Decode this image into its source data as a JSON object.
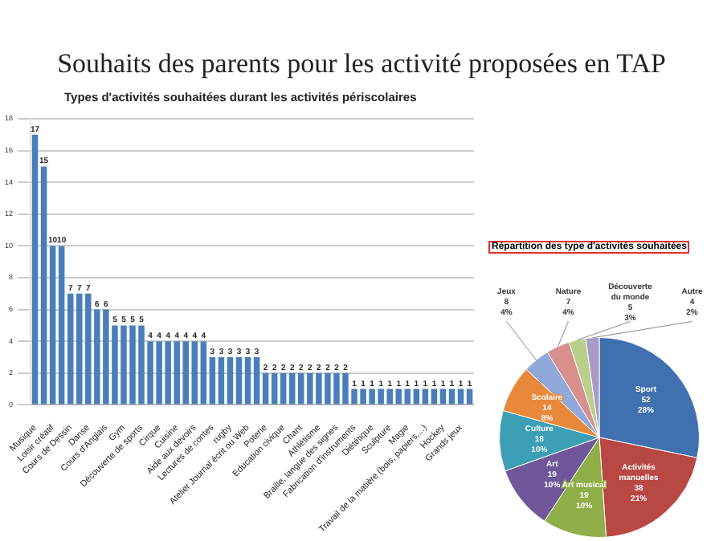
{
  "chart_data": [
    {
      "type": "bar",
      "title": "Souhaits des parents pour les activité proposées en TAP",
      "subtitle": "Types d'activités souhaitées durant les activités périscolaires",
      "categories": [
        "Musique",
        null,
        "Loisir créatif",
        null,
        "Cours de Dessin",
        null,
        "Danse",
        null,
        "Cours d'Anglais",
        null,
        "Gym",
        null,
        "Découverte de sports",
        null,
        "Cirque",
        null,
        "Cuisine",
        null,
        "Aide aux devoirs",
        null,
        "Lectures de contes",
        null,
        "rugby",
        null,
        "Atelier Journal écrit ou Web",
        null,
        "Poterie",
        null,
        "Education civique",
        null,
        "Chant",
        null,
        "Athlétisme",
        null,
        "Braille, langue des signes",
        null,
        "Fabrication d'instruments",
        null,
        "Diététique",
        null,
        "Sculpture",
        null,
        "Magie",
        null,
        "Travail de la matière (bois, papiers,...)",
        null,
        "Hockey",
        null,
        "Grands jeux",
        null
      ],
      "values": [
        17,
        15,
        10,
        10,
        7,
        7,
        7,
        6,
        6,
        5,
        5,
        5,
        5,
        4,
        4,
        4,
        4,
        4,
        4,
        4,
        3,
        3,
        3,
        3,
        3,
        3,
        2,
        2,
        2,
        2,
        2,
        2,
        2,
        2,
        2,
        2,
        1,
        1,
        1,
        1,
        1,
        1,
        1,
        1,
        1,
        1,
        1,
        1,
        1,
        1
      ],
      "color": "#4a7ebb",
      "ylim": [
        0,
        18
      ],
      "yticks": [
        0,
        2,
        4,
        6,
        8,
        10,
        12,
        14,
        16,
        18
      ],
      "grid": "y",
      "data_labels": true
    },
    {
      "type": "pie",
      "title": "Répartition des type d'activités souhaitées",
      "categories": [
        "Sport",
        "Activités manuelles",
        "Art musical",
        "Art",
        "Culture",
        "Scolaire",
        "Jeux",
        "Nature",
        "Découverte du monde",
        "Autre"
      ],
      "values": [
        52,
        38,
        19,
        19,
        18,
        14,
        8,
        7,
        5,
        4
      ],
      "value_labels": [
        "52 28%",
        "38 21%",
        "19 10%",
        "19 10%",
        "18 10%",
        "14 8%",
        "8 4%",
        "7 4%",
        "5 3%",
        "4 2%"
      ],
      "colors": [
        "#4170b0",
        "#b94845",
        "#8fae47",
        "#70579a",
        "#3c9fb6",
        "#e8883a",
        "#8fa9db",
        "#d8908d",
        "#b9cf8c",
        "#a99bc8"
      ]
    }
  ]
}
